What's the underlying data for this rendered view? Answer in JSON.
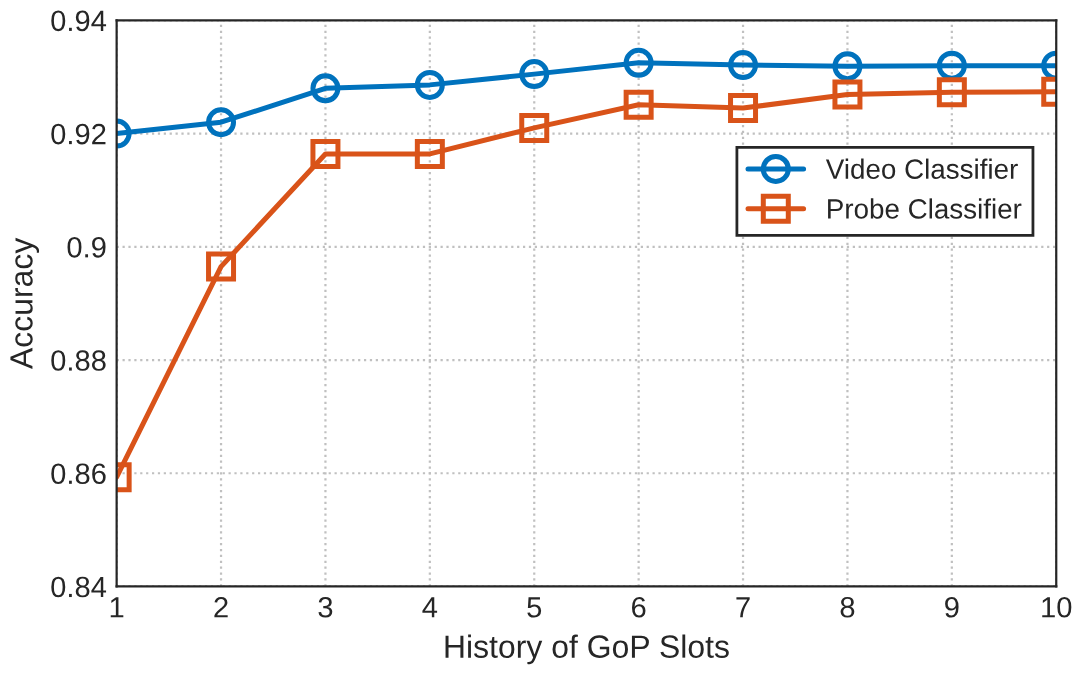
{
  "chart_data": {
    "type": "line",
    "xlabel": "History of GoP Slots",
    "ylabel": "Accuracy",
    "x": [
      1,
      2,
      3,
      4,
      5,
      6,
      7,
      8,
      9,
      10
    ],
    "series": [
      {
        "name": "Video Classifier",
        "color": "#0072bd",
        "marker": "circle",
        "values": [
          0.92,
          0.922,
          0.928,
          0.9286,
          0.9305,
          0.9325,
          0.9321,
          0.9319,
          0.932,
          0.932
        ]
      },
      {
        "name": "Probe Classifier",
        "color": "#d95319",
        "marker": "square",
        "values": [
          0.8593,
          0.8965,
          0.9164,
          0.9164,
          0.921,
          0.9251,
          0.9245,
          0.9269,
          0.9273,
          0.9274
        ]
      }
    ],
    "xlim": [
      1,
      10
    ],
    "xticks": [
      1,
      2,
      3,
      4,
      5,
      6,
      7,
      8,
      9,
      10
    ],
    "ylim": [
      0.84,
      0.94
    ],
    "yticks": [
      0.84,
      0.86,
      0.88,
      0.9,
      0.92,
      0.94
    ],
    "grid": true,
    "legend": "right",
    "line_style": "solid"
  }
}
